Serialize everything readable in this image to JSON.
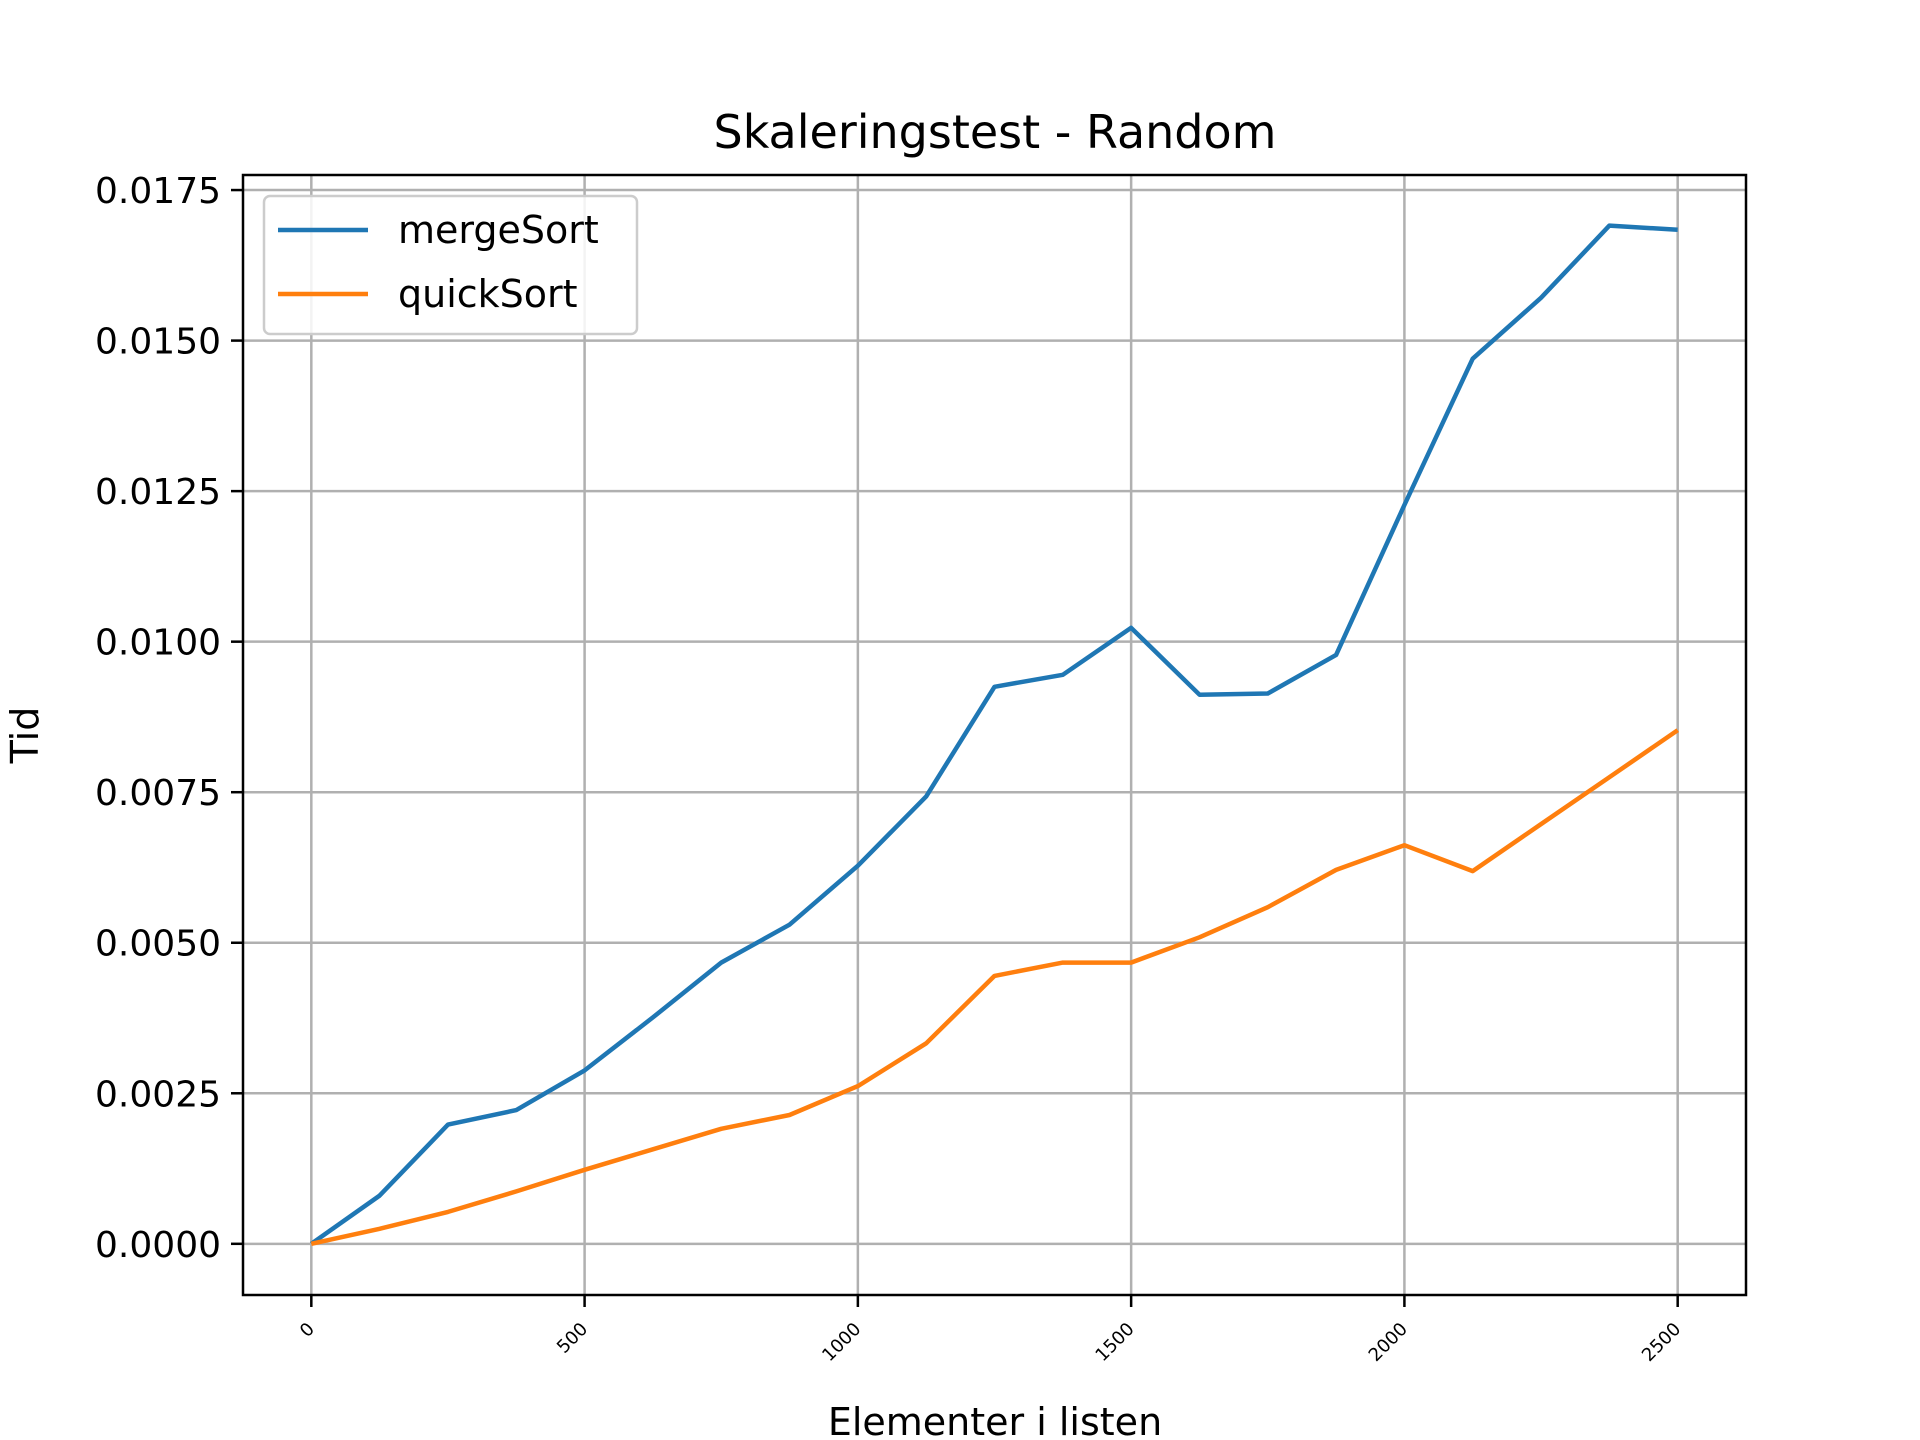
{
  "chart_data": {
    "type": "line",
    "title": "Skaleringstest - Random",
    "xlabel": "Elementer i listen",
    "ylabel": "Tid",
    "xlim": [
      -125,
      2625
    ],
    "ylim": [
      -0.00085,
      0.01775
    ],
    "grid": true,
    "legend_position": "top-left",
    "x": [
      0,
      125,
      250,
      375,
      500,
      625,
      750,
      875,
      1000,
      1125,
      1250,
      1375,
      1500,
      1625,
      1750,
      1875,
      2000,
      2125,
      2250,
      2375,
      2500
    ],
    "x_ticks": [
      0,
      500,
      1000,
      1500,
      2000,
      2500
    ],
    "x_tick_labels": [
      "0",
      "500",
      "1000",
      "1500",
      "2000",
      "2500"
    ],
    "y_ticks": [
      0,
      0.0025,
      0.005,
      0.0075,
      0.01,
      0.0125,
      0.015,
      0.0175
    ],
    "y_tick_labels": [
      "0.0000",
      "0.0025",
      "0.0050",
      "0.0075",
      "0.0100",
      "0.0125",
      "0.0150",
      "0.0175"
    ],
    "series": [
      {
        "name": "mergeSort",
        "color": "#1f77b4",
        "values": [
          0.0,
          0.0008,
          0.00198,
          0.00222,
          0.00288,
          0.00376,
          0.00467,
          0.0053,
          0.00628,
          0.00743,
          0.00925,
          0.00945,
          0.01023,
          0.00912,
          0.00914,
          0.00978,
          0.01227,
          0.0147,
          0.01571,
          0.01691,
          0.01684
        ]
      },
      {
        "name": "quickSort",
        "color": "#ff7f0e",
        "values": [
          0.0,
          0.00025,
          0.00053,
          0.00087,
          0.00123,
          0.00157,
          0.00191,
          0.00214,
          0.00262,
          0.00333,
          0.00445,
          0.00467,
          0.00467,
          0.00509,
          0.00559,
          0.00621,
          0.00662,
          0.00619,
          0.00697,
          0.00775,
          0.00853
        ]
      }
    ]
  }
}
